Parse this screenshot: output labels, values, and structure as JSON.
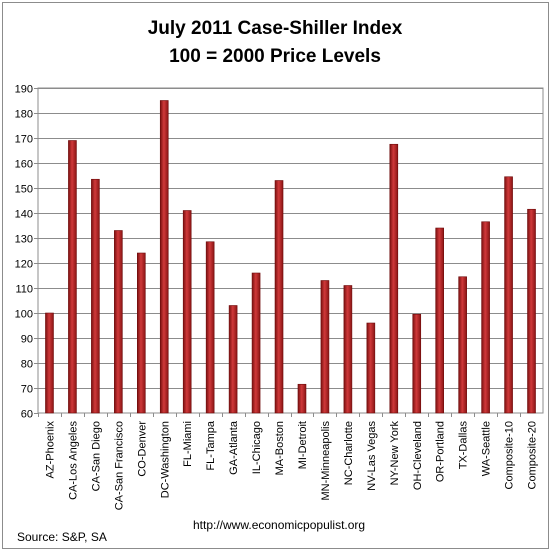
{
  "chart_data": {
    "type": "bar",
    "title": "July 2011 Case-Shiller Index",
    "subtitle": "100 = 2000 Price Levels",
    "categories": [
      "AZ-Phoenix",
      "CA-Los Angeles",
      "CA-San Diego",
      "CA-San Francisco",
      "CO-Denver",
      "DC-Washington",
      "FL-Miami",
      "FL-Tampa",
      "GA-Atlanta",
      "IL-Chicago",
      "MA-Boston",
      "MI-Detroit",
      "MN-Minneapolis",
      "NC-Charlotte",
      "NV-Las Vegas",
      "NY-New York",
      "OH-Cleveland",
      "OR-Portland",
      "TX-Dallas",
      "WA-Seattle",
      "Composite-10",
      "Composite-20"
    ],
    "values": [
      100,
      169,
      153.5,
      133,
      124,
      185,
      141,
      128.5,
      103,
      116,
      153,
      71.5,
      113,
      111,
      96,
      167.5,
      99.5,
      134,
      114.5,
      136.5,
      154.5,
      141.5
    ],
    "ylim": [
      60,
      190
    ],
    "yticks": [
      "60",
      "70",
      "80",
      "90",
      "100",
      "110",
      "120",
      "130",
      "140",
      "150",
      "160",
      "170",
      "180",
      "190"
    ],
    "grid": true,
    "legend": "none",
    "bar_color": "#b52022",
    "source": "Source:  S&P, SA",
    "url": "http://www.economicpopulist.org"
  }
}
